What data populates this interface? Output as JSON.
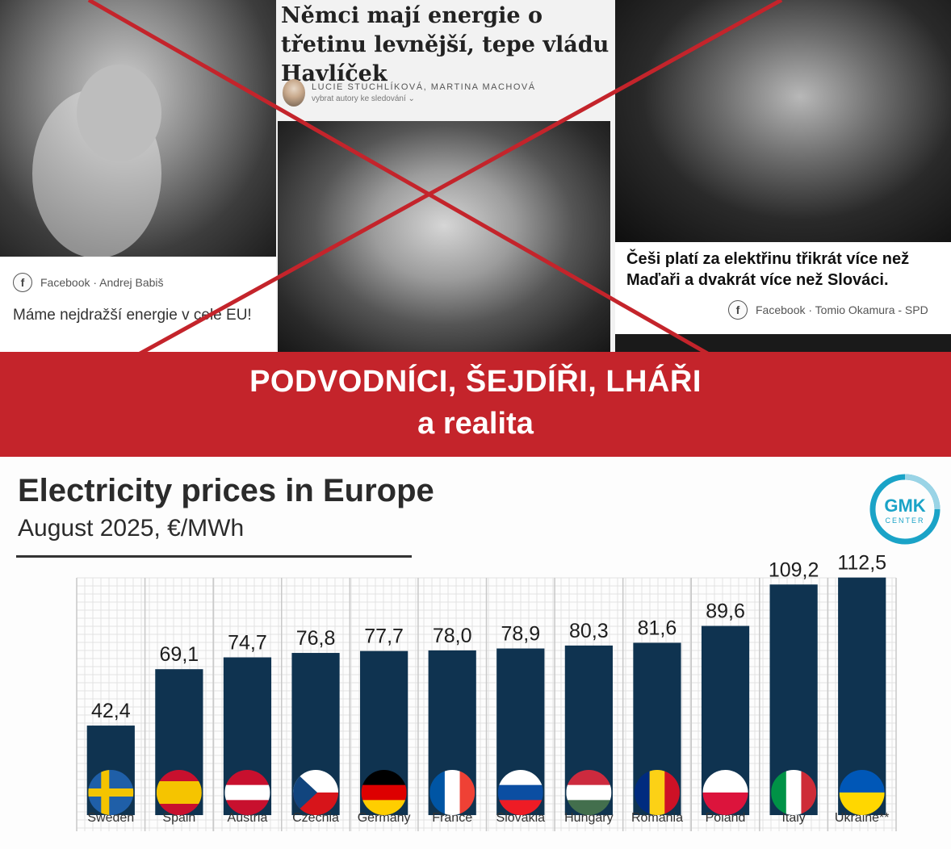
{
  "top": {
    "left_post": {
      "source": "Facebook · Andrej Babiš",
      "quote": "Máme nejdražší energie v celé EU!",
      "icon": "facebook-icon"
    },
    "article": {
      "headline": "Němci mají energie o třetinu levnější, tepe vládu Havlíček",
      "authors": "LUCIE STUCHLÍKOVÁ, MARTINA MACHOVÁ",
      "follow": "vybrat autory ke sledování ⌄"
    },
    "right_post": {
      "quote": "Češi platí za elektřinu třikrát více než Maďaři a dvakrát více než Slováci.",
      "source": "Facebook · Tomio Okamura - SPD",
      "icon": "facebook-icon"
    },
    "cross_color": "#c4242b"
  },
  "banner": {
    "line1": "PODVODNÍCI, ŠEJDÍŘI, LHÁŘI",
    "line2": "a realita",
    "color": "#c4242b"
  },
  "logo": {
    "line1": "GMK",
    "line2": "CENTER",
    "color": "#1aa3c7"
  },
  "chart_data": {
    "type": "bar",
    "title": "Electricity prices in Europe",
    "subtitle": "August 2025, €/MWh",
    "categories": [
      "Sweden",
      "Spain",
      "Austria",
      "Czechia",
      "Germany",
      "France",
      "Slovakia",
      "Hungary",
      "Romania",
      "Poland",
      "Italy",
      "Ukraine**"
    ],
    "values": [
      42.4,
      69.1,
      74.7,
      76.8,
      77.7,
      78.0,
      78.9,
      80.3,
      81.6,
      89.6,
      109.2,
      112.5
    ],
    "value_labels": [
      "42,4",
      "69,1",
      "74,7",
      "76,8",
      "77,7",
      "78,0",
      "78,9",
      "80,3",
      "81,6",
      "89,6",
      "109,2",
      "112,5"
    ],
    "ylim": [
      0,
      120
    ],
    "bar_color": "#0f3350",
    "grid": true,
    "flags": [
      "flag-sweden-icon",
      "flag-spain-icon",
      "flag-austria-icon",
      "flag-czechia-icon",
      "flag-germany-icon",
      "flag-france-icon",
      "flag-slovakia-icon",
      "flag-hungary-icon",
      "flag-romania-icon",
      "flag-poland-icon",
      "flag-italy-icon",
      "flag-ukraine-icon"
    ]
  }
}
